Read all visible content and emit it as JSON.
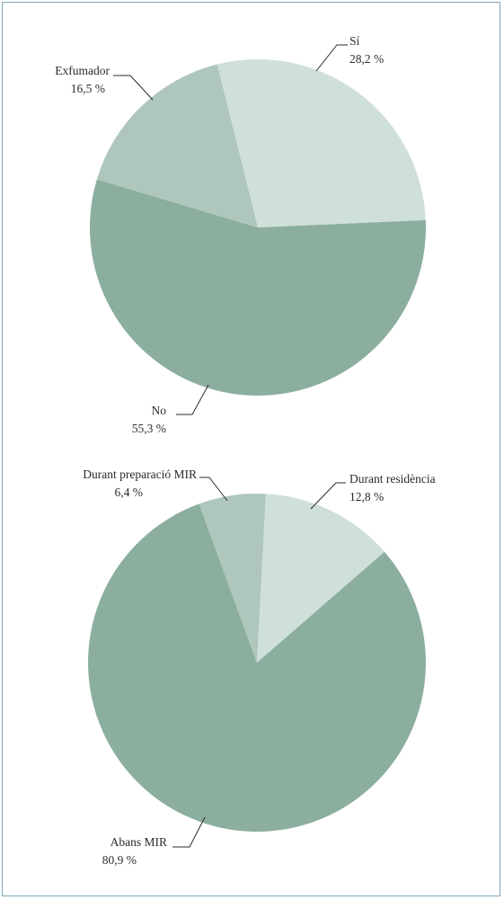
{
  "chart_data": [
    {
      "type": "pie",
      "title": "",
      "slices": [
        {
          "label": "Sí",
          "value_text": "28,2 %",
          "value": 28.2,
          "color": "#cfdfd9"
        },
        {
          "label": "No",
          "value_text": "55,3 %",
          "value": 55.3,
          "color": "#8cae9f"
        },
        {
          "label": "Exfumador",
          "value_text": "16,5 %",
          "value": 16.5,
          "color": "#aec6bb"
        }
      ]
    },
    {
      "type": "pie",
      "title": "",
      "slices": [
        {
          "label": "Durant residència",
          "value_text": "12,8 %",
          "value": 12.8,
          "color": "#cfdfd9"
        },
        {
          "label": "Abans MIR",
          "value_text": "80,9 %",
          "value": 80.9,
          "color": "#8cae9f"
        },
        {
          "label": "Durant preparació MIR",
          "value_text": "6,4 %",
          "value": 6.4,
          "color": "#aec6bb"
        }
      ]
    }
  ]
}
